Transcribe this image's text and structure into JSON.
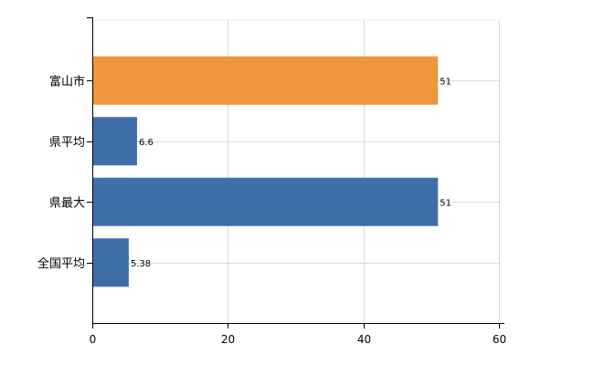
{
  "chart_data": {
    "type": "bar",
    "orientation": "horizontal",
    "categories": [
      "富山市",
      "県平均",
      "県最大",
      "全国平均"
    ],
    "values": [
      51,
      6.6,
      51,
      5.38
    ],
    "value_labels": [
      "51",
      "6.6",
      "51",
      "5.38"
    ],
    "bar_colors": [
      "#f0963c",
      "#3f6eaa",
      "#3f6eaa",
      "#3f6eaa"
    ],
    "xlim": [
      0,
      60
    ],
    "xticks": [
      0,
      20,
      40,
      60
    ],
    "xtick_labels": [
      "0",
      "20",
      "40",
      "60"
    ],
    "grid": true,
    "legend": "none",
    "title": "",
    "xlabel": "",
    "ylabel": ""
  }
}
